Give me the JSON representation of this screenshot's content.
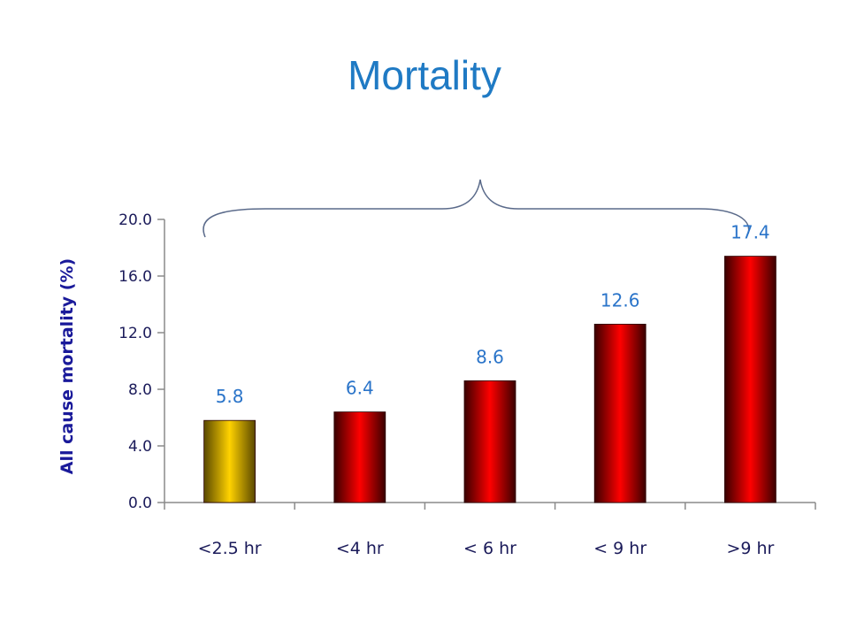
{
  "slide": {
    "title": "Mortality"
  },
  "chart_data": {
    "type": "bar",
    "categories": [
      "<2.5 hr",
      "<4 hr",
      "< 6 hr",
      "< 9 hr",
      ">9 hr"
    ],
    "values": [
      5.8,
      6.4,
      8.6,
      12.6,
      17.4
    ],
    "data_labels": [
      "5.8",
      "6.4",
      "8.6",
      "12.6",
      "17.4"
    ],
    "yticks": [
      0.0,
      4.0,
      8.0,
      12.0,
      16.0,
      20.0
    ],
    "ytick_labels": [
      "0.0",
      "4.0",
      "8.0",
      "12.0",
      "16.0",
      "20.0"
    ],
    "ylim": [
      0,
      20
    ],
    "ylabel": "All cause  mortality (%)",
    "xlabel": "",
    "grid": false,
    "colors": {
      "first_bar": "#f5c400",
      "other_bars": "#ff0000",
      "bar_edge_dark": "#3a0000",
      "axis": "#8a8a8a",
      "brace": "#5a6a8a"
    }
  }
}
